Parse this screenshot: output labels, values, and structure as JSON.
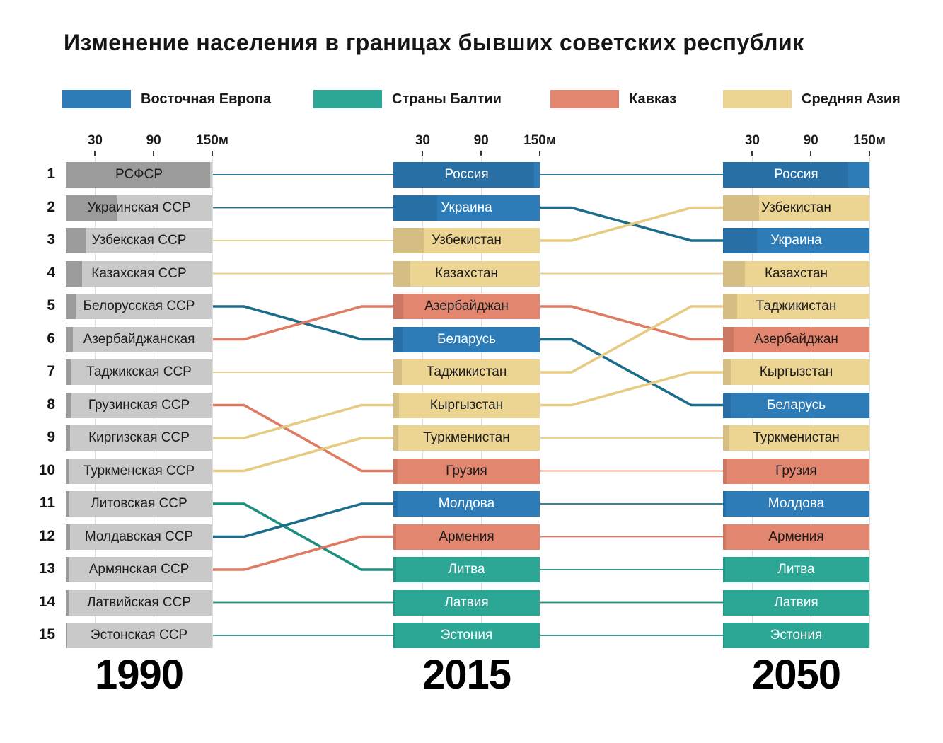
{
  "title": "Изменение населения в границах бывших советских республик",
  "legend": [
    {
      "label": "Восточная Европа",
      "region": "east_europe"
    },
    {
      "label": "Страны Балтии",
      "region": "baltics"
    },
    {
      "label": "Кавказ",
      "region": "caucasus"
    },
    {
      "label": "Средняя Азия",
      "region": "central_asia"
    }
  ],
  "regions": {
    "east_europe": {
      "color": "#2d7cb8",
      "line": "#1c6c8c",
      "text": "#ffffff"
    },
    "baltics": {
      "color": "#2ca695",
      "line": "#1c8f7e",
      "text": "#ffffff"
    },
    "caucasus": {
      "color": "#e28670",
      "line": "#df7b62",
      "text": "#1c1c1c"
    },
    "central_asia": {
      "color": "#ecd493",
      "line": "#e7cb82",
      "text": "#1c1c1c"
    }
  },
  "gray": {
    "color": "#c9c9c9",
    "value_color": "#9b9b9b",
    "text": "#1c1c1c"
  },
  "chart_data": {
    "type": "bump-bar",
    "unit_suffix": "м",
    "axis": {
      "ticks": [
        30,
        90,
        150
      ],
      "tick_labels": [
        "30",
        "90",
        "150м"
      ],
      "max": 150
    },
    "columns": [
      {
        "year": "1990",
        "style": "gray",
        "entries": [
          {
            "id": "rus",
            "label": "РСФСР",
            "region": "east_europe",
            "value": 148.0
          },
          {
            "id": "ukr",
            "label": "Украинская ССР",
            "region": "east_europe",
            "value": 51.9
          },
          {
            "id": "uzb",
            "label": "Узбекская ССР",
            "region": "central_asia",
            "value": 20.5
          },
          {
            "id": "kaz",
            "label": "Казахская ССР",
            "region": "central_asia",
            "value": 16.8
          },
          {
            "id": "blr",
            "label": "Белорусская ССР",
            "region": "east_europe",
            "value": 10.3
          },
          {
            "id": "aze",
            "label": "Азербайджанская",
            "region": "caucasus",
            "value": 7.2
          },
          {
            "id": "tjk",
            "label": "Таджикская ССР",
            "region": "central_asia",
            "value": 5.3
          },
          {
            "id": "geo",
            "label": "Грузинская ССР",
            "region": "caucasus",
            "value": 5.5
          },
          {
            "id": "kgz",
            "label": "Киргизская ССР",
            "region": "central_asia",
            "value": 4.4
          },
          {
            "id": "tkm",
            "label": "Туркменская ССР",
            "region": "central_asia",
            "value": 3.7
          },
          {
            "id": "ltu",
            "label": "Литовская ССР",
            "region": "baltics",
            "value": 3.7
          },
          {
            "id": "mda",
            "label": "Молдавская ССР",
            "region": "east_europe",
            "value": 4.4
          },
          {
            "id": "arm",
            "label": "Армянская ССР",
            "region": "caucasus",
            "value": 3.5
          },
          {
            "id": "lva",
            "label": "Латвийская ССР",
            "region": "baltics",
            "value": 2.7
          },
          {
            "id": "est",
            "label": "Эстонская ССР",
            "region": "baltics",
            "value": 1.6
          }
        ]
      },
      {
        "year": "2015",
        "style": "region",
        "entries": [
          {
            "id": "rus",
            "label": "Россия",
            "region": "east_europe",
            "value": 144.1
          },
          {
            "id": "ukr",
            "label": "Украина",
            "region": "east_europe",
            "value": 44.8
          },
          {
            "id": "uzb",
            "label": "Узбекистан",
            "region": "central_asia",
            "value": 31.3
          },
          {
            "id": "kaz",
            "label": "Казахстан",
            "region": "central_asia",
            "value": 17.6
          },
          {
            "id": "aze",
            "label": "Азербайджан",
            "region": "caucasus",
            "value": 9.8
          },
          {
            "id": "blr",
            "label": "Беларусь",
            "region": "east_europe",
            "value": 9.5
          },
          {
            "id": "tjk",
            "label": "Таджикистан",
            "region": "central_asia",
            "value": 8.5
          },
          {
            "id": "kgz",
            "label": "Кыргызстан",
            "region": "central_asia",
            "value": 5.9
          },
          {
            "id": "tkm",
            "label": "Туркменистан",
            "region": "central_asia",
            "value": 5.4
          },
          {
            "id": "geo",
            "label": "Грузия",
            "region": "caucasus",
            "value": 4.0
          },
          {
            "id": "mda",
            "label": "Молдова",
            "region": "east_europe",
            "value": 4.1
          },
          {
            "id": "arm",
            "label": "Армения",
            "region": "caucasus",
            "value": 3.0
          },
          {
            "id": "ltu",
            "label": "Литва",
            "region": "baltics",
            "value": 2.9
          },
          {
            "id": "lva",
            "label": "Латвия",
            "region": "baltics",
            "value": 2.0
          },
          {
            "id": "est",
            "label": "Эстония",
            "region": "baltics",
            "value": 1.3
          }
        ]
      },
      {
        "year": "2050",
        "style": "region",
        "entries": [
          {
            "id": "rus",
            "label": "Россия",
            "region": "east_europe",
            "value": 128.6
          },
          {
            "id": "uzb",
            "label": "Узбекистан",
            "region": "central_asia",
            "value": 37.1
          },
          {
            "id": "ukr",
            "label": "Украина",
            "region": "east_europe",
            "value": 35.1
          },
          {
            "id": "kaz",
            "label": "Казахстан",
            "region": "central_asia",
            "value": 22.4
          },
          {
            "id": "tjk",
            "label": "Таджикистан",
            "region": "central_asia",
            "value": 14.3
          },
          {
            "id": "aze",
            "label": "Азербайджан",
            "region": "caucasus",
            "value": 11.0
          },
          {
            "id": "kgz",
            "label": "Кыргызстан",
            "region": "central_asia",
            "value": 8.2
          },
          {
            "id": "blr",
            "label": "Беларусь",
            "region": "east_europe",
            "value": 8.0
          },
          {
            "id": "tkm",
            "label": "Туркменистан",
            "region": "central_asia",
            "value": 6.2
          },
          {
            "id": "geo",
            "label": "Грузия",
            "region": "caucasus",
            "value": 3.8
          },
          {
            "id": "mda",
            "label": "Молдова",
            "region": "east_europe",
            "value": 3.1
          },
          {
            "id": "arm",
            "label": "Армения",
            "region": "caucasus",
            "value": 2.8
          },
          {
            "id": "ltu",
            "label": "Литва",
            "region": "baltics",
            "value": 2.4
          },
          {
            "id": "lva",
            "label": "Латвия",
            "region": "baltics",
            "value": 1.6
          },
          {
            "id": "est",
            "label": "Эстония",
            "region": "baltics",
            "value": 1.2
          }
        ]
      }
    ]
  }
}
